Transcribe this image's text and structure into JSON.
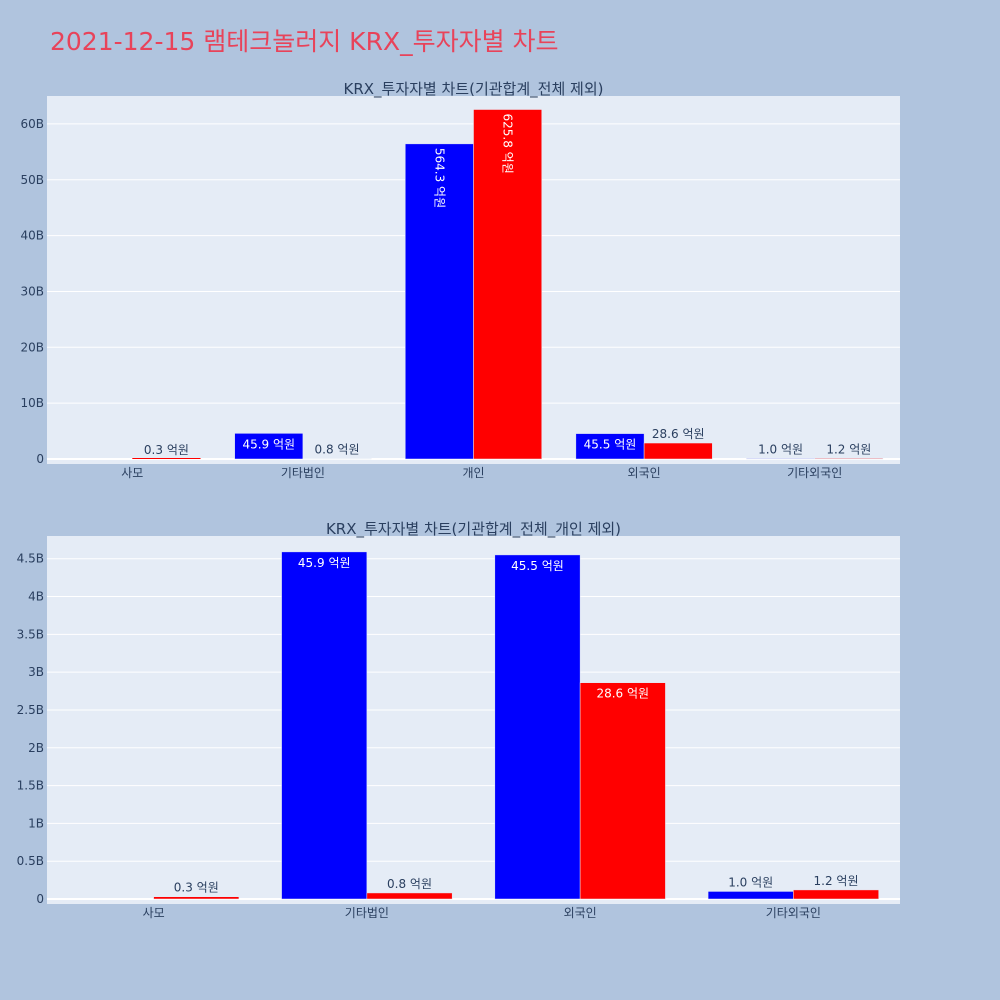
{
  "page": {
    "title": "2021-12-15 램테크놀러지 KRX_투자자별 차트"
  },
  "colors": {
    "series_a": "#0000ff",
    "series_b": "#ff0000",
    "plot_bg": "#e5ecf6",
    "page_bg": "#b0c4de"
  },
  "chart_data": [
    {
      "type": "bar",
      "title": "KRX_투자자별 차트(기관합계_전체 제외)",
      "categories": [
        "사모",
        "기타법인",
        "개인",
        "외국인",
        "기타외국인"
      ],
      "series": [
        {
          "values": [
            0,
            4590000000,
            56430000000,
            4550000000,
            100000000
          ],
          "labels": [
            "",
            "45.9 억원",
            "564.3 억원",
            "45.5 억원",
            "1.0 억원"
          ],
          "color": "#0000ff"
        },
        {
          "values": [
            30000000,
            80000000,
            62580000000,
            2860000000,
            120000000
          ],
          "labels": [
            "0.3 억원",
            "0.8 억원",
            "625.8 억원",
            "28.6 억원",
            "1.2 억원"
          ],
          "color": "#ff0000"
        }
      ],
      "ylim": [
        0,
        65000000000
      ],
      "yticks": [
        0,
        10000000000,
        20000000000,
        30000000000,
        40000000000,
        50000000000,
        60000000000
      ],
      "yticklabels": [
        "0",
        "10B",
        "20B",
        "30B",
        "40B",
        "50B",
        "60B"
      ],
      "grid": true
    },
    {
      "type": "bar",
      "title": "KRX_투자자별 차트(기관합계_전체_개인 제외)",
      "categories": [
        "사모",
        "기타법인",
        "외국인",
        "기타외국인"
      ],
      "series": [
        {
          "values": [
            0,
            4590000000,
            4550000000,
            100000000
          ],
          "labels": [
            "",
            "45.9 억원",
            "45.5 억원",
            "1.0 억원"
          ],
          "color": "#0000ff"
        },
        {
          "values": [
            30000000,
            80000000,
            2860000000,
            120000000
          ],
          "labels": [
            "0.3 억원",
            "0.8 억원",
            "28.6 억원",
            "1.2 억원"
          ],
          "color": "#ff0000"
        }
      ],
      "ylim": [
        0,
        4800000000
      ],
      "yticks": [
        0,
        500000000,
        1000000000,
        1500000000,
        2000000000,
        2500000000,
        3000000000,
        3500000000,
        4000000000,
        4500000000
      ],
      "yticklabels": [
        "0",
        "0.5B",
        "1B",
        "1.5B",
        "2B",
        "2.5B",
        "3B",
        "3.5B",
        "4B",
        "4.5B"
      ],
      "grid": true
    }
  ]
}
